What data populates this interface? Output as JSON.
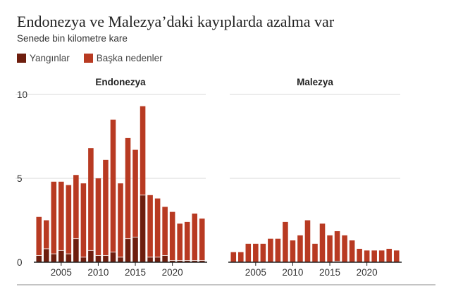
{
  "title": "Endonezya ve Malezya’daki kayıplarda azalma var",
  "subtitle": "Senede bin kilometre kare",
  "colors": {
    "fires": "#6e1e0e",
    "other": "#b83a22",
    "grid": "#d9d9d9",
    "axis": "#222222"
  },
  "legend": [
    {
      "label": "Yangınlar",
      "color": "#6e1e0e"
    },
    {
      "label": "Başka nedenler",
      "color": "#b83a22"
    }
  ],
  "chart_data": [
    {
      "type": "bar",
      "stacked": true,
      "title": "Endonezya",
      "x": [
        2002,
        2003,
        2004,
        2005,
        2006,
        2007,
        2008,
        2009,
        2010,
        2011,
        2012,
        2013,
        2014,
        2015,
        2016,
        2017,
        2018,
        2019,
        2020,
        2021,
        2022,
        2023,
        2024
      ],
      "series": [
        {
          "name": "Yangınlar",
          "values": [
            0.4,
            0.8,
            0.5,
            0.7,
            0.5,
            1.4,
            0.3,
            0.7,
            0.4,
            0.4,
            0.6,
            0.3,
            1.4,
            1.5,
            4.0,
            0.3,
            0.3,
            0.4,
            0.1,
            0.1,
            0.1,
            0.1,
            0.1
          ]
        },
        {
          "name": "Başka nedenler",
          "values": [
            2.3,
            1.7,
            4.3,
            4.1,
            4.1,
            3.8,
            4.4,
            6.1,
            4.6,
            5.7,
            7.9,
            4.4,
            6.0,
            5.2,
            5.3,
            3.7,
            3.5,
            2.9,
            2.9,
            2.2,
            2.3,
            2.8,
            2.5
          ]
        }
      ],
      "ylim": [
        0,
        10
      ],
      "yticks": [
        "0",
        "5",
        "10"
      ],
      "xticks": [
        "2005",
        "2010",
        "2015",
        "2020"
      ],
      "grid": true
    },
    {
      "type": "bar",
      "stacked": true,
      "title": "Malezya",
      "x": [
        2002,
        2003,
        2004,
        2005,
        2006,
        2007,
        2008,
        2009,
        2010,
        2011,
        2012,
        2013,
        2014,
        2015,
        2016,
        2017,
        2018,
        2019,
        2020,
        2021,
        2022,
        2023,
        2024
      ],
      "series": [
        {
          "name": "Yangınlar",
          "values": [
            0,
            0,
            0,
            0,
            0,
            0,
            0,
            0,
            0,
            0,
            0,
            0,
            0,
            0,
            0.05,
            0,
            0,
            0,
            0,
            0,
            0,
            0,
            0
          ]
        },
        {
          "name": "Başka nedenler",
          "values": [
            0.6,
            0.6,
            1.1,
            1.1,
            1.1,
            1.4,
            1.4,
            2.4,
            1.3,
            1.6,
            2.5,
            1.1,
            2.3,
            1.6,
            1.8,
            1.6,
            1.3,
            0.8,
            0.7,
            0.7,
            0.7,
            0.8,
            0.7
          ]
        }
      ],
      "ylim": [
        0,
        10
      ],
      "yticks": [
        "0",
        "5",
        "10"
      ],
      "xticks": [
        "2005",
        "2010",
        "2015",
        "2020"
      ],
      "grid": true
    }
  ]
}
